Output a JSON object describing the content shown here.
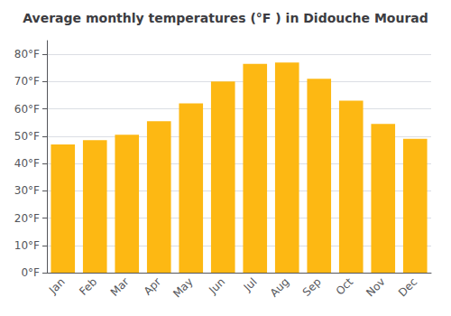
{
  "chart_data": {
    "type": "bar",
    "title": "Average monthly temperatures (°F ) in Didouche Mourad",
    "categories": [
      "Jan",
      "Feb",
      "Mar",
      "Apr",
      "May",
      "Jun",
      "Jul",
      "Aug",
      "Sep",
      "Oct",
      "Nov",
      "Dec"
    ],
    "values": [
      47,
      48.5,
      50.5,
      55.5,
      62,
      70,
      76.5,
      77,
      71,
      63,
      54.5,
      49
    ],
    "color": "#FDB813",
    "ylim": [
      0,
      85
    ],
    "yticks": [
      {
        "value": 0,
        "label": "0°F"
      },
      {
        "value": 10,
        "label": "10°F"
      },
      {
        "value": 20,
        "label": "20°F"
      },
      {
        "value": 30,
        "label": "30°F"
      },
      {
        "value": 40,
        "label": "40°F"
      },
      {
        "value": 50,
        "label": "50°F"
      },
      {
        "value": 60,
        "label": "60°F"
      },
      {
        "value": 70,
        "label": "70°F"
      },
      {
        "value": 80,
        "label": "80°F"
      }
    ],
    "grid": true
  }
}
